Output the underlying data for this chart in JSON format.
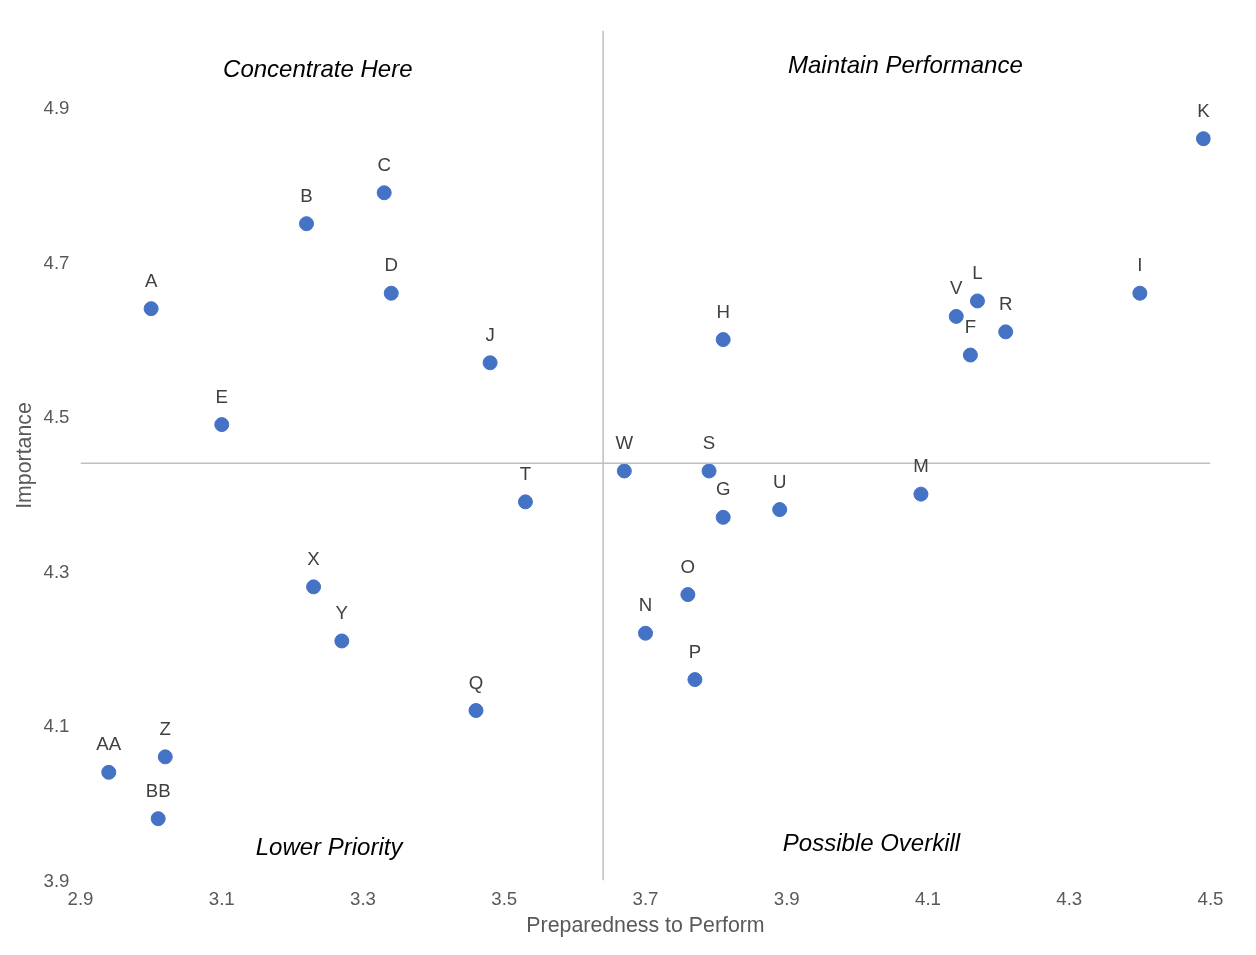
{
  "chart_data": {
    "type": "scatter",
    "xlabel": "Preparedness to Perform",
    "ylabel": "Importance",
    "x": [
      3.0,
      3.22,
      3.33,
      3.34,
      3.1,
      3.48,
      3.53,
      3.23,
      3.27,
      3.46,
      2.94,
      3.02,
      3.01,
      3.81,
      3.67,
      3.79,
      3.81,
      3.89,
      4.09,
      3.76,
      3.7,
      3.77,
      4.14,
      4.17,
      4.21,
      4.16,
      4.4,
      4.49
    ],
    "values": [
      4.64,
      4.75,
      4.79,
      4.66,
      4.49,
      4.57,
      4.39,
      4.28,
      4.21,
      4.12,
      4.04,
      4.06,
      3.98,
      4.6,
      4.43,
      4.43,
      4.37,
      4.38,
      4.4,
      4.27,
      4.22,
      4.16,
      4.63,
      4.65,
      4.61,
      4.58,
      4.66,
      4.86
    ],
    "value_labels": [
      "A",
      "B",
      "C",
      "D",
      "E",
      "J",
      "T",
      "X",
      "Y",
      "Q",
      "AA",
      "Z",
      "BB",
      "H",
      "W",
      "S",
      "G",
      "U",
      "M",
      "O",
      "N",
      "P",
      "V",
      "L",
      "R",
      "F",
      "I",
      "K"
    ],
    "color": "#4472c4",
    "marker": "circle",
    "grid": false,
    "xlim": [
      2.9,
      4.5
    ],
    "xticks": [
      2.9,
      3.1,
      3.3,
      3.5,
      3.7,
      3.9,
      4.1,
      4.3,
      4.5
    ],
    "ylim": [
      3.9,
      5.0
    ],
    "yticks": [
      3.9,
      4.1,
      4.3,
      4.5,
      4.7,
      4.9
    ],
    "ref_lines": [
      {
        "axis": "x",
        "value": 3.64,
        "color": "#bfbfbf"
      },
      {
        "axis": "y",
        "value": 4.44,
        "color": "#bfbfbf"
      }
    ],
    "annotations": [
      "Concentrate Here",
      "Maintain Performance",
      "Lower Priority",
      "Possible Overkill"
    ]
  }
}
